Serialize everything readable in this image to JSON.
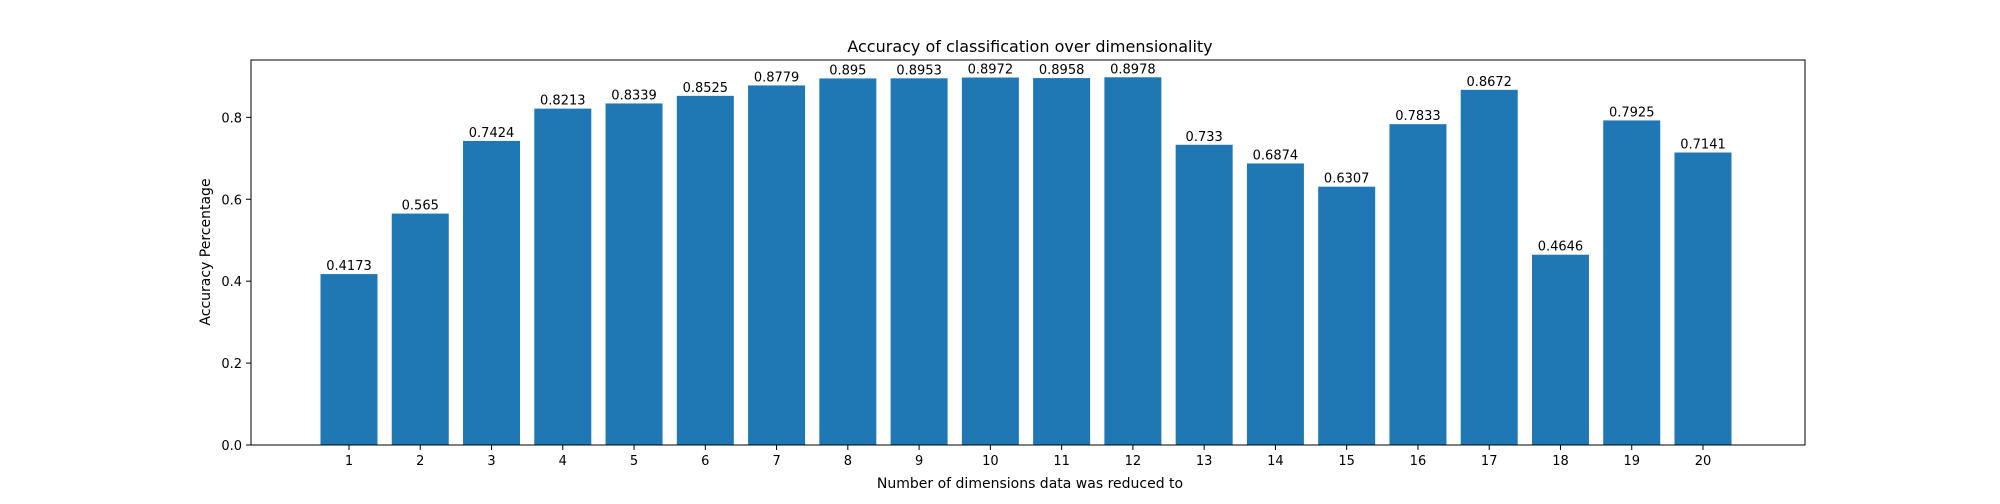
{
  "chart_data": {
    "type": "bar",
    "title": "Accuracy of classification over dimensionality",
    "xlabel": "Number of dimensions data was reduced to",
    "ylabel": "Accuracy Percentage",
    "categories": [
      "1",
      "2",
      "3",
      "4",
      "5",
      "6",
      "7",
      "8",
      "9",
      "10",
      "11",
      "12",
      "13",
      "14",
      "15",
      "16",
      "17",
      "18",
      "19",
      "20"
    ],
    "values": [
      0.4173,
      0.565,
      0.7424,
      0.8213,
      0.8339,
      0.8525,
      0.8779,
      0.895,
      0.8953,
      0.8972,
      0.8958,
      0.8978,
      0.733,
      0.6874,
      0.6307,
      0.7833,
      0.8672,
      0.4646,
      0.7925,
      0.7141
    ],
    "value_labels": [
      "0.4173",
      "0.565",
      "0.7424",
      "0.8213",
      "0.8339",
      "0.8525",
      "0.8779",
      "0.895",
      "0.8953",
      "0.8972",
      "0.8958",
      "0.8978",
      "0.733",
      "0.6874",
      "0.6307",
      "0.7833",
      "0.8672",
      "0.4646",
      "0.7925",
      "0.7141"
    ],
    "yticks": [
      "0.0",
      "0.2",
      "0.4",
      "0.6",
      "0.8"
    ],
    "ylim": [
      0,
      0.94
    ],
    "grid": false,
    "bar_color": "#1f77b4"
  }
}
